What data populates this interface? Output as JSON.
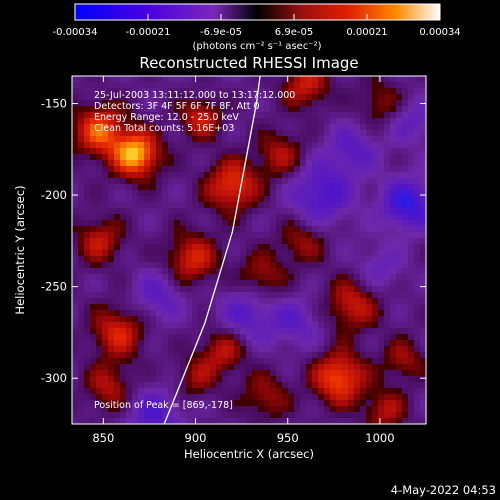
{
  "chart_data": {
    "type": "heatmap",
    "title": "Reconstructed RHESSI Image",
    "xlabel": "Heliocentric X (arcsec)",
    "ylabel": "Heliocentric Y (arcsec)",
    "xlim": [
      833,
      1025
    ],
    "ylim": [
      -325,
      -135
    ],
    "x_ticks": [
      850,
      900,
      950,
      1000
    ],
    "y_ticks": [
      -150,
      -200,
      -250,
      -300
    ],
    "colorbar": {
      "ticks": [
        "-0.00034",
        "-0.00021",
        "-6.9e-05",
        "6.9e-05",
        "0.00021",
        "0.00034"
      ],
      "range": [
        -0.00034,
        0.00034
      ],
      "units": "(photons cm⁻² s⁻¹ asec⁻²)"
    },
    "annotations": [
      "25-Jul-2003 13:11:12.000 to 13:17:12.000",
      "Detectors: 3F 4F 5F 6F 7F 8F, Att 0",
      "Energy Range: 12.0 - 25.0 keV",
      "Clean     Total counts: 5.16E+03"
    ],
    "peak_label": "Position of Peak = [869,-178]",
    "peak_position": [
      869,
      -178
    ],
    "limb_curve": [
      [
        883,
        -325
      ],
      [
        905,
        -270
      ],
      [
        920,
        -220
      ],
      [
        933,
        -150
      ],
      [
        935,
        -135
      ]
    ],
    "intensity_blobs": [
      {
        "x": 868,
        "y": -178,
        "amp": 1.0,
        "sigma": 9
      },
      {
        "x": 848,
        "y": -165,
        "amp": 0.75,
        "sigma": 10
      },
      {
        "x": 903,
        "y": -158,
        "amp": 0.55,
        "sigma": 8
      },
      {
        "x": 920,
        "y": -195,
        "amp": 0.7,
        "sigma": 10
      },
      {
        "x": 946,
        "y": -178,
        "amp": 0.45,
        "sigma": 9
      },
      {
        "x": 960,
        "y": -140,
        "amp": 0.55,
        "sigma": 9
      },
      {
        "x": 1000,
        "y": -150,
        "amp": 0.35,
        "sigma": 9
      },
      {
        "x": 958,
        "y": -225,
        "amp": 0.4,
        "sigma": 9
      },
      {
        "x": 848,
        "y": -225,
        "amp": 0.5,
        "sigma": 9
      },
      {
        "x": 898,
        "y": -235,
        "amp": 0.6,
        "sigma": 10
      },
      {
        "x": 936,
        "y": -245,
        "amp": 0.45,
        "sigma": 9
      },
      {
        "x": 858,
        "y": -275,
        "amp": 0.6,
        "sigma": 10
      },
      {
        "x": 915,
        "y": -285,
        "amp": 0.5,
        "sigma": 9
      },
      {
        "x": 985,
        "y": -260,
        "amp": 0.55,
        "sigma": 10
      },
      {
        "x": 1013,
        "y": -290,
        "amp": 0.4,
        "sigma": 8
      },
      {
        "x": 853,
        "y": -305,
        "amp": 0.45,
        "sigma": 9
      },
      {
        "x": 900,
        "y": -300,
        "amp": 0.35,
        "sigma": 8
      },
      {
        "x": 938,
        "y": -310,
        "amp": 0.4,
        "sigma": 9
      },
      {
        "x": 978,
        "y": -300,
        "amp": 0.8,
        "sigma": 10
      },
      {
        "x": 1003,
        "y": -318,
        "amp": 0.45,
        "sigma": 8
      },
      {
        "x": 968,
        "y": -200,
        "amp": -0.55,
        "sigma": 12
      },
      {
        "x": 1015,
        "y": -205,
        "amp": -0.7,
        "sigma": 10
      },
      {
        "x": 985,
        "y": -175,
        "amp": -0.4,
        "sigma": 10
      },
      {
        "x": 928,
        "y": -265,
        "amp": -0.45,
        "sigma": 11
      },
      {
        "x": 880,
        "y": -255,
        "amp": -0.4,
        "sigma": 10
      },
      {
        "x": 878,
        "y": -320,
        "amp": -0.5,
        "sigma": 10
      },
      {
        "x": 955,
        "y": -270,
        "amp": -0.35,
        "sigma": 10
      },
      {
        "x": 1018,
        "y": -160,
        "amp": -0.35,
        "sigma": 9
      },
      {
        "x": 1000,
        "y": -240,
        "amp": -0.3,
        "sigma": 9
      }
    ]
  },
  "footer": {
    "timestamp": "4-May-2022 04:53"
  }
}
